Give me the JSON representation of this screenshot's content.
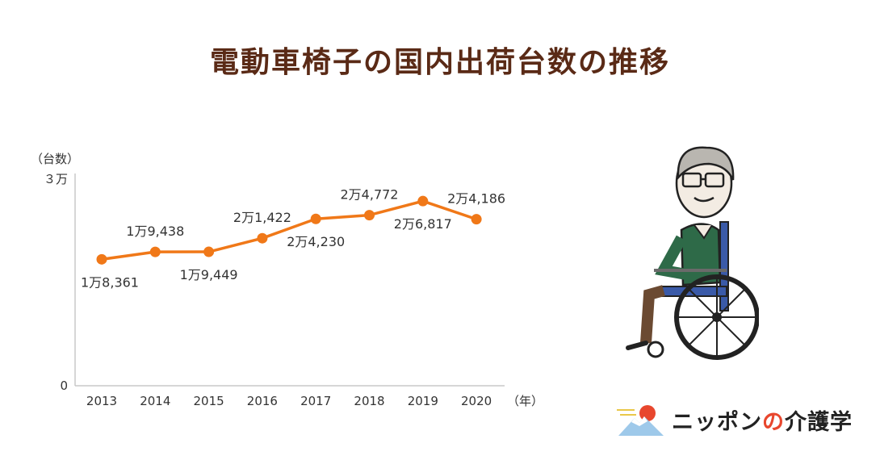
{
  "title": "電動車椅子の国内出荷台数の推移",
  "chart_data": {
    "type": "line",
    "title": "電動車椅子の国内出荷台数の推移",
    "ylabel": "（台数）",
    "xlabel": "（年）",
    "ylim": [
      0,
      30000
    ],
    "y_ticks": [
      {
        "value": 0,
        "label": "0"
      },
      {
        "value": 30000,
        "label": "３万"
      }
    ],
    "grid": false,
    "color": "#f07818",
    "categories": [
      "2013",
      "2014",
      "2015",
      "2016",
      "2017",
      "2018",
      "2019",
      "2020"
    ],
    "values": [
      18361,
      19438,
      19449,
      21422,
      24230,
      24772,
      26817,
      24186
    ],
    "data_labels": [
      "1万8,361",
      "1万9,438",
      "1万9,449",
      "2万1,422",
      "2万4,230",
      "2万4,772",
      "2万6,817",
      "2万4,186"
    ],
    "label_positions": [
      "below",
      "above",
      "below",
      "above",
      "below",
      "above",
      "below",
      "above"
    ]
  },
  "logo": {
    "text_before": "ニッポン",
    "text_no": "の",
    "text_after": "介護学",
    "icon": "mount-fuji-sun-icon"
  },
  "illustration": {
    "icon": "elderly-man-wheelchair-icon"
  }
}
